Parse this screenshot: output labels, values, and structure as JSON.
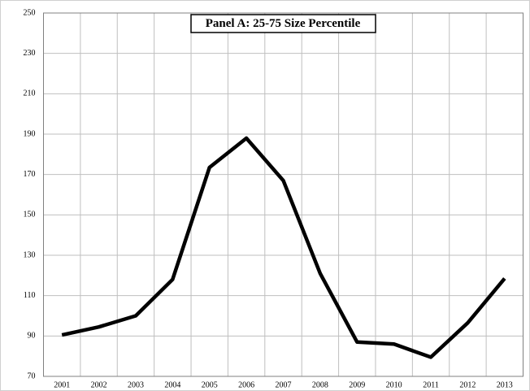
{
  "chart_data": {
    "type": "line",
    "title": "Panel A: 25-75 Size Percentile",
    "categories": [
      "2001",
      "2002",
      "2003",
      "2004",
      "2005",
      "2006",
      "2007",
      "2008",
      "2009",
      "2010",
      "2011",
      "2012",
      "2013"
    ],
    "values": [
      90.5,
      94.5,
      100,
      118,
      173.5,
      188,
      167,
      121,
      87,
      86,
      79.5,
      96.5,
      118.5
    ],
    "color": "#000000",
    "ylim": [
      70,
      250
    ],
    "yticks": [
      70,
      90,
      110,
      130,
      150,
      170,
      190,
      210,
      230,
      250
    ],
    "grid": true
  }
}
